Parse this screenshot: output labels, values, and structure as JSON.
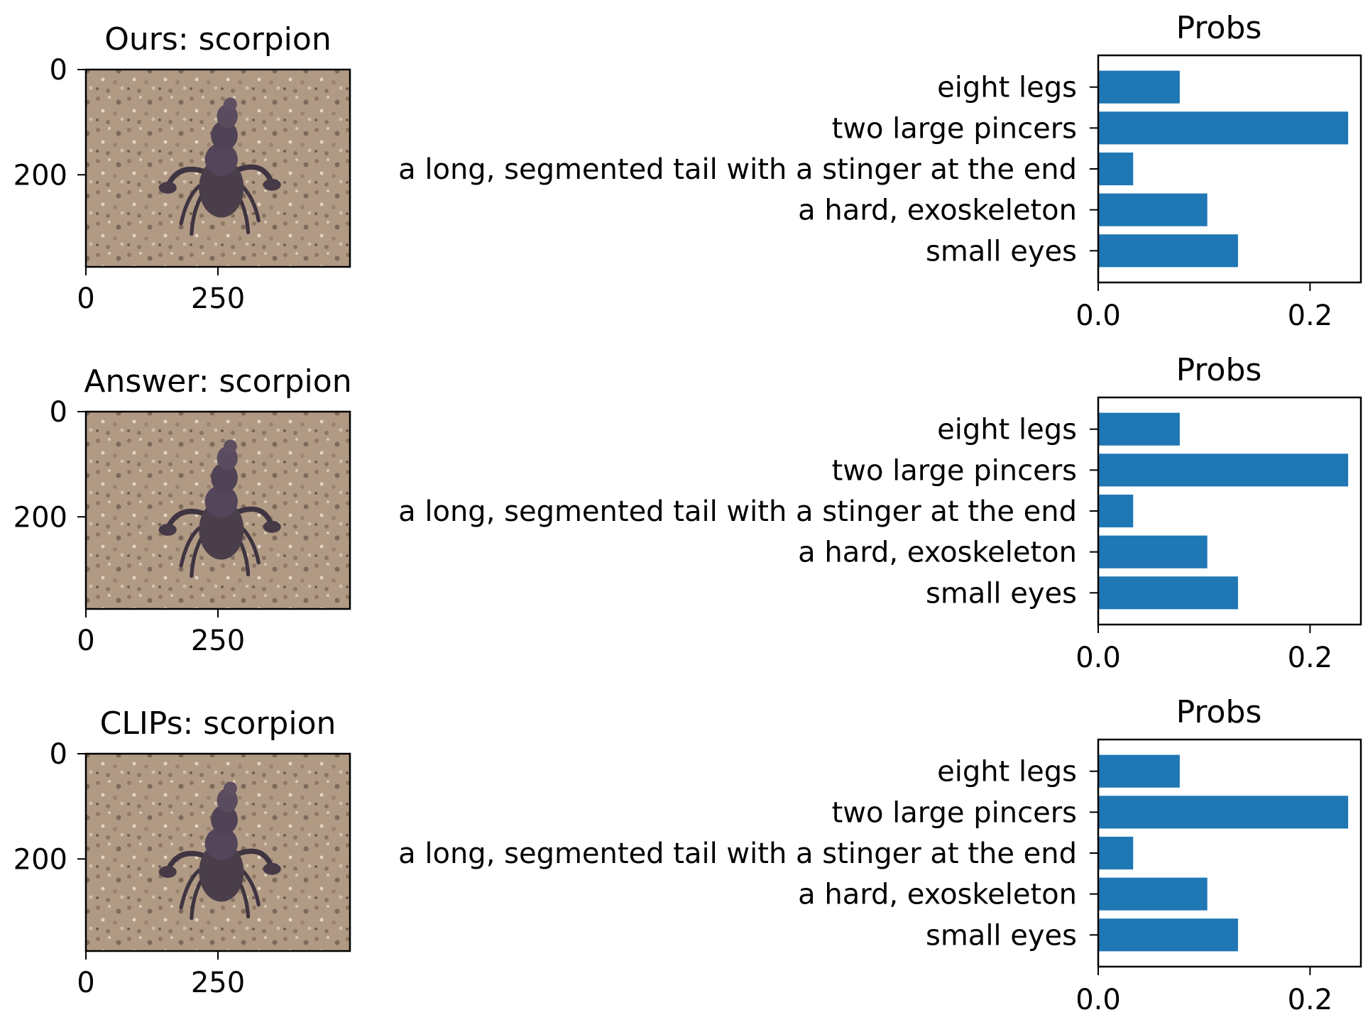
{
  "chart_data": [
    {
      "type": "image",
      "title": "Ours: scorpion",
      "x_ticks": [
        0,
        250
      ],
      "y_ticks": [
        0,
        200
      ],
      "image_width": 500,
      "image_height": 375,
      "image_subject": "scorpion"
    },
    {
      "type": "bar",
      "orientation": "horizontal",
      "title": "Probs",
      "categories": [
        "eight legs",
        "two large pincers",
        "a long, segmented tail with a stinger at the end",
        "a hard, exoskeleton",
        "small eyes"
      ],
      "values": [
        0.077,
        0.236,
        0.033,
        0.103,
        0.132
      ],
      "x_ticks": [
        "0.0",
        "0.2"
      ],
      "xlim": [
        0,
        0.248
      ],
      "bar_color": "#1f77b4"
    },
    {
      "type": "image",
      "title": "Answer: scorpion",
      "x_ticks": [
        0,
        250
      ],
      "y_ticks": [
        0,
        200
      ],
      "image_width": 500,
      "image_height": 375,
      "image_subject": "scorpion"
    },
    {
      "type": "bar",
      "orientation": "horizontal",
      "title": "Probs",
      "categories": [
        "eight legs",
        "two large pincers",
        "a long, segmented tail with a stinger at the end",
        "a hard, exoskeleton",
        "small eyes"
      ],
      "values": [
        0.077,
        0.236,
        0.033,
        0.103,
        0.132
      ],
      "x_ticks": [
        "0.0",
        "0.2"
      ],
      "xlim": [
        0,
        0.248
      ],
      "bar_color": "#1f77b4"
    },
    {
      "type": "image",
      "title": "CLIPs: scorpion",
      "x_ticks": [
        0,
        250
      ],
      "y_ticks": [
        0,
        200
      ],
      "image_width": 500,
      "image_height": 375,
      "image_subject": "scorpion"
    },
    {
      "type": "bar",
      "orientation": "horizontal",
      "title": "Probs",
      "categories": [
        "eight legs",
        "two large pincers",
        "a long, segmented tail with a stinger at the end",
        "a hard, exoskeleton",
        "small eyes"
      ],
      "values": [
        0.077,
        0.236,
        0.033,
        0.103,
        0.132
      ],
      "x_ticks": [
        "0.0",
        "0.2"
      ],
      "xlim": [
        0,
        0.248
      ],
      "bar_color": "#1f77b4"
    }
  ]
}
